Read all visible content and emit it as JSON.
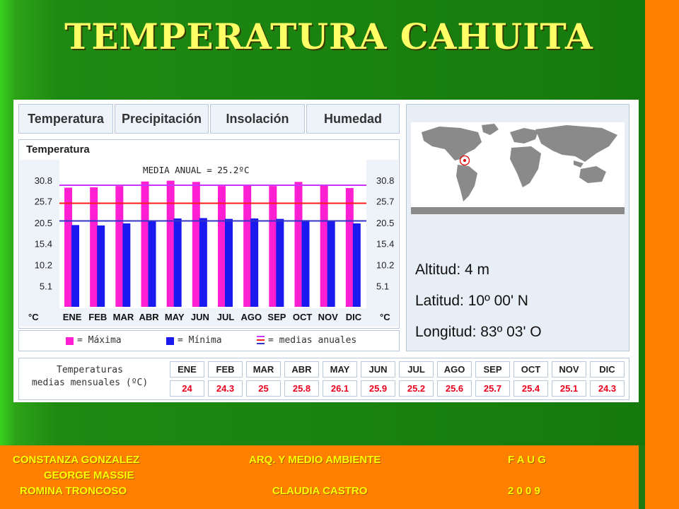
{
  "title": "TEMPERATURA CAHUITA",
  "tabs": [
    "Temperatura",
    "Precipitación",
    "Insolación",
    "Humedad"
  ],
  "colors": {
    "maxima": "#ff1fd2",
    "minima": "#1a1aee",
    "linea_maxima": "#cc33ff",
    "linea_media": "#ff1a1a",
    "linea_minima": "#3333cc"
  },
  "chart_data": {
    "type": "bar",
    "title": "Temperatura",
    "annotation": "MEDIA ANUAL = 25.2ºC",
    "unit_left": "°C",
    "unit_right": "°C",
    "categories": [
      "ENE",
      "FEB",
      "MAR",
      "ABR",
      "MAY",
      "JUN",
      "JUL",
      "AGO",
      "SEP",
      "OCT",
      "NOV",
      "DIC"
    ],
    "yticks": [
      "30.8",
      "25.7",
      "20.5",
      "15.4",
      "10.2",
      "5.1"
    ],
    "ylim": [
      0,
      30.8
    ],
    "series": [
      {
        "name": "Máxima",
        "values": [
          29.0,
          29.1,
          29.4,
          30.5,
          30.7,
          30.4,
          29.4,
          29.6,
          29.4,
          30.4,
          29.7,
          28.9
        ]
      },
      {
        "name": "Mínima",
        "values": [
          19.9,
          19.8,
          20.3,
          21.0,
          21.5,
          21.6,
          21.4,
          21.5,
          21.4,
          21.1,
          20.9,
          20.3
        ]
      }
    ],
    "reference_lines": [
      {
        "label": "máxima anual",
        "value": 29.6
      },
      {
        "label": "media anual",
        "value": 25.2
      },
      {
        "label": "mínima anual",
        "value": 20.9
      }
    ],
    "grid": false,
    "legend_position": "bottom"
  },
  "legend": {
    "maxima": "= Máxima",
    "minima": "= Mínima",
    "medias": "= medias anuales"
  },
  "location": {
    "altitud": "Altitud: 4 m",
    "latitud": "Latitud: 10º 00' N",
    "longitud": "Longitud:  83º 03' O"
  },
  "table": {
    "header_line1": "Temperaturas",
    "header_line2": "medias mensuales (ºC)",
    "months": [
      "ENE",
      "FEB",
      "MAR",
      "ABR",
      "MAY",
      "JUN",
      "JUL",
      "AGO",
      "SEP",
      "OCT",
      "NOV",
      "DIC"
    ],
    "values": [
      "24",
      "24.3",
      "25",
      "25.8",
      "26.1",
      "25.9",
      "25.2",
      "25.6",
      "25.7",
      "25.4",
      "25.1",
      "24.3"
    ]
  },
  "footer": {
    "author1": "CONSTANZA GONZALEZ",
    "author2": "GEORGE MASSIE",
    "author3": "ROMINA TRONCOSO",
    "course": "ARQ. Y MEDIO AMBIENTE",
    "teacher": "CLAUDIA CASTRO",
    "faculty": "F A U G",
    "year": "2 0 0 9"
  }
}
